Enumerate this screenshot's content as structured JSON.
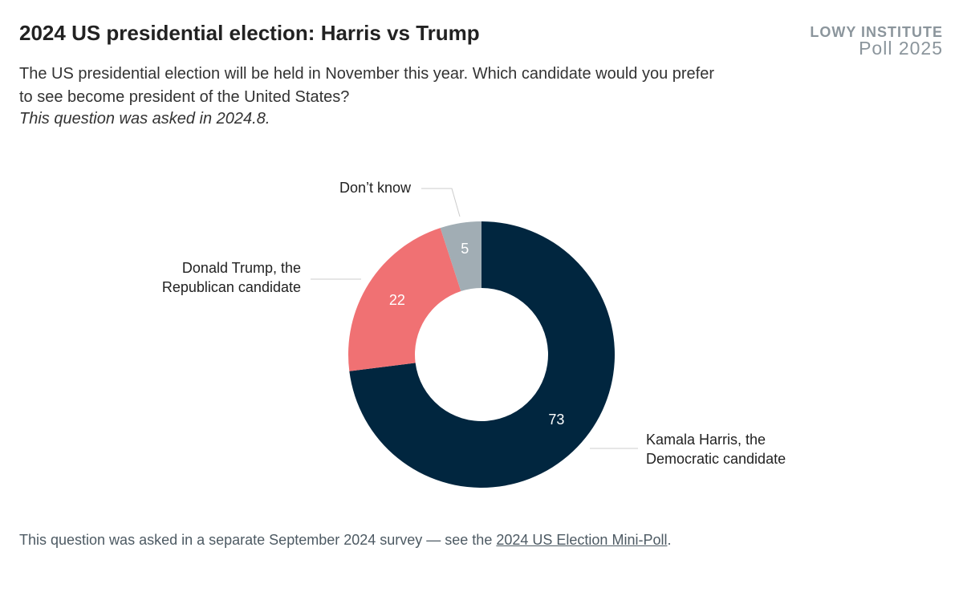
{
  "brand": {
    "name": "LOWY INSTITUTE",
    "subtitle": "Poll 2025"
  },
  "chart_data": {
    "type": "pie",
    "title": "2024 US presidential election: Harris vs Trump",
    "subtitle": "The US presidential election will be held in November this year. Which candidate would you prefer to see become president of the United States?",
    "note": "This question was asked in 2024.8.",
    "categories": [
      "Kamala Harris, the Democratic candidate",
      "Donald Trump, the Republican candidate",
      "Don’t know"
    ],
    "values": [
      73,
      22,
      5
    ],
    "colors": [
      "#01263f",
      "#f07173",
      "#a1adb4"
    ]
  },
  "footer": {
    "text": "This question was asked in a separate September 2024 survey — see the",
    "link": "2024 US Election Mini-Poll",
    "suffix": "."
  }
}
